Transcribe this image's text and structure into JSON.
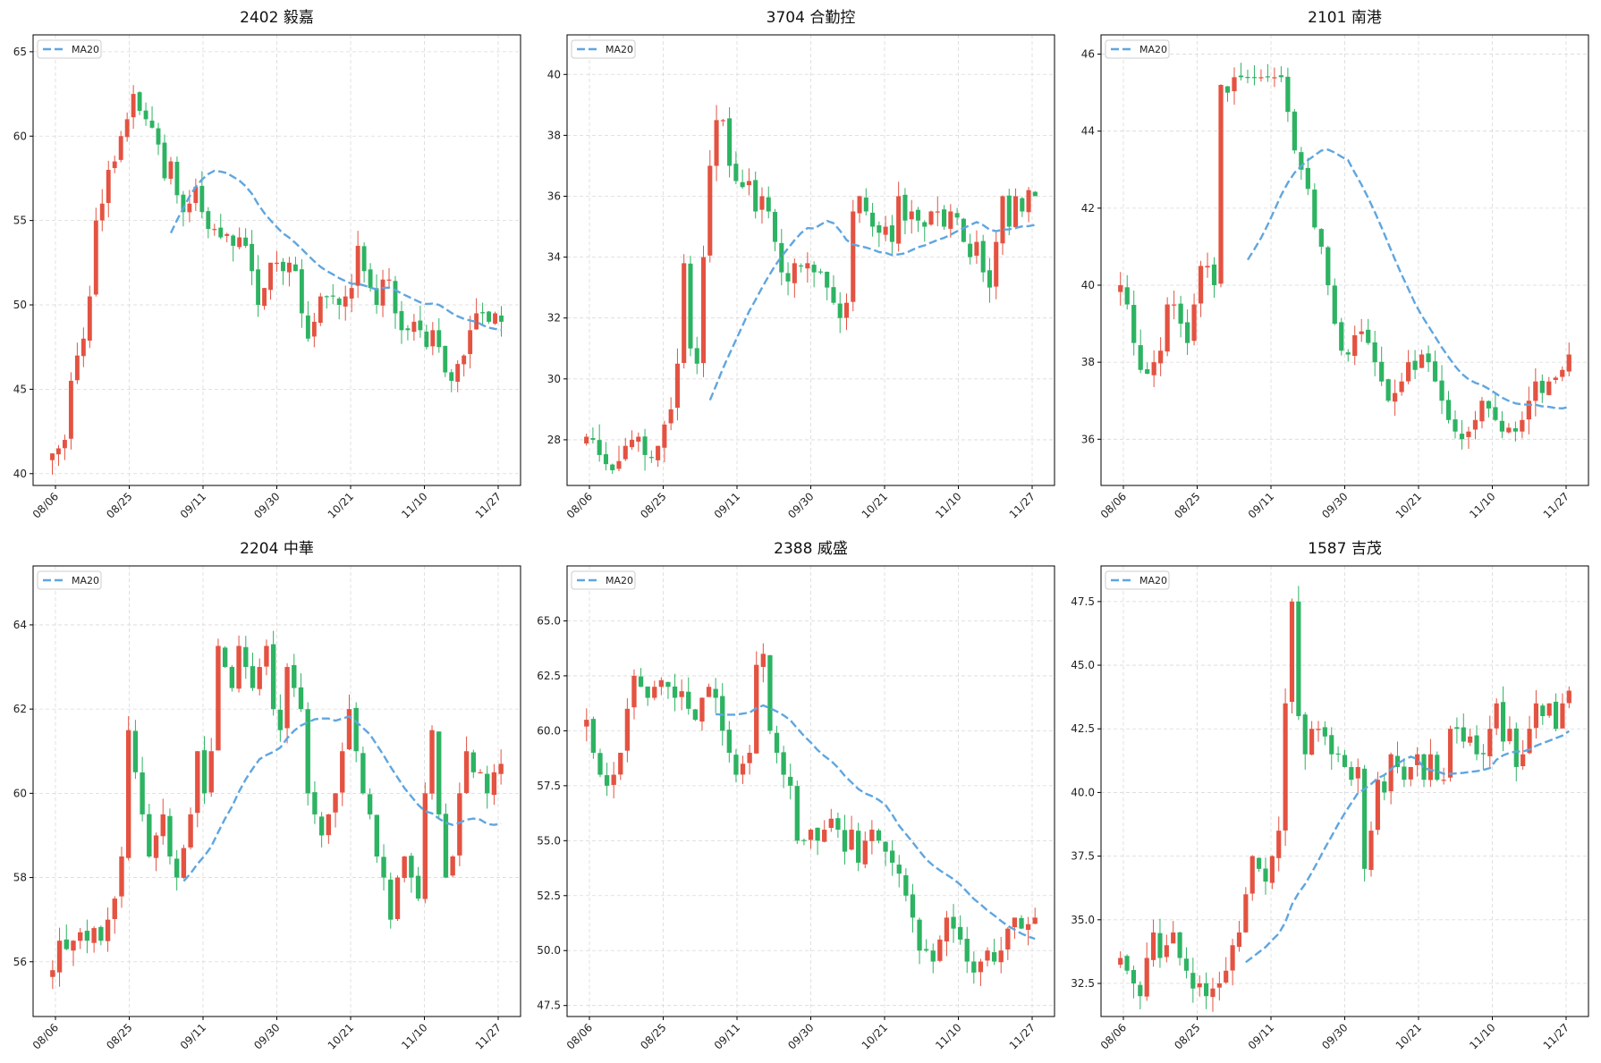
{
  "colors": {
    "up": "#e45241",
    "down": "#2db362",
    "ma": "#5fa6e0",
    "grid": "#d9d9d9",
    "axis": "#000000"
  },
  "chart_data": [
    {
      "type": "candlestick",
      "title": "2402 毅嘉",
      "legend": "MA20",
      "legend_position": "top-left",
      "grid": true,
      "ylim": [
        39.3,
        66
      ],
      "yticks": [
        "40",
        "45",
        "50",
        "55",
        "60",
        "65"
      ],
      "ytick_values": [
        40,
        45,
        50,
        55,
        60,
        65
      ],
      "xticks": [
        "08/06",
        "08/25",
        "09/11",
        "09/30",
        "10/21",
        "11/10",
        "11/27"
      ],
      "price_path": [
        41.2,
        41.5,
        42,
        45.5,
        47,
        48,
        50.5,
        55,
        56,
        58,
        58.5,
        60,
        61,
        62.5,
        61.5,
        61,
        60.5,
        59.5,
        57.5,
        58.5,
        56.5,
        55.5,
        56,
        57,
        55.5,
        54.5,
        54.5,
        54,
        54.2,
        53.5,
        54,
        53.5,
        52,
        50,
        51,
        52.5,
        52.5,
        52,
        52.5,
        52,
        49.5,
        48,
        49,
        50.5,
        50.5,
        50.5,
        50,
        50.5,
        51,
        53.5,
        52,
        51,
        50,
        51.5,
        51.5,
        49.5,
        48.5,
        48.5,
        49,
        48.5,
        47.5,
        48.5,
        47.5,
        46,
        45.5,
        46.5,
        47,
        48.5,
        49.5,
        49.5,
        49,
        49.5,
        49
      ]
    },
    {
      "type": "candlestick",
      "title": "3704 合勤控",
      "legend": "MA20",
      "legend_position": "top-left",
      "grid": true,
      "ylim": [
        26.5,
        41.3
      ],
      "yticks": [
        "28",
        "30",
        "32",
        "34",
        "36",
        "38",
        "40"
      ],
      "ytick_values": [
        28,
        30,
        32,
        34,
        36,
        38,
        40
      ],
      "xticks": [
        "08/06",
        "08/25",
        "09/11",
        "09/30",
        "10/21",
        "11/10",
        "11/27"
      ],
      "price_path": [
        28.1,
        28,
        27.5,
        27.2,
        27,
        27.3,
        27.8,
        28,
        28.1,
        27.5,
        27.4,
        27.8,
        28.5,
        29,
        30.5,
        33.8,
        31,
        30.5,
        34,
        37,
        38.5,
        38.5,
        37,
        36.5,
        36.3,
        36.5,
        35.5,
        36,
        35.5,
        34.5,
        33.5,
        33.2,
        33.8,
        33.7,
        33.8,
        33.5,
        33.5,
        33,
        32.5,
        32,
        32.5,
        35.5,
        36,
        35.5,
        35,
        34.8,
        35,
        34.5,
        36,
        35.2,
        35.5,
        35.2,
        35,
        35.5,
        35.5,
        35,
        35.5,
        35.3,
        34.5,
        34,
        34.5,
        33.5,
        33,
        34.5,
        36,
        35,
        36,
        35.5,
        36.2,
        36
      ]
    },
    {
      "type": "candlestick",
      "title": "2101 南港",
      "legend": "MA20",
      "legend_position": "top-left",
      "grid": true,
      "ylim": [
        34.8,
        46.5
      ],
      "yticks": [
        "36",
        "38",
        "40",
        "42",
        "44",
        "46"
      ],
      "ytick_values": [
        36,
        38,
        40,
        42,
        44,
        46
      ],
      "xticks": [
        "08/06",
        "08/25",
        "09/11",
        "09/30",
        "10/21",
        "11/10",
        "11/27"
      ],
      "price_path": [
        40,
        39.5,
        38.5,
        37.8,
        37.7,
        38,
        38.3,
        39.5,
        39.5,
        39,
        38.5,
        39.5,
        40.5,
        40.5,
        40,
        45.2,
        45,
        45.4,
        45.4,
        45.4,
        45.4,
        45.4,
        45.4,
        45.4,
        45.4,
        44.5,
        43.5,
        43,
        42.5,
        41.5,
        41,
        40,
        39,
        38.3,
        38.2,
        38.7,
        38.8,
        38.5,
        38,
        37.5,
        37,
        37.2,
        37.5,
        38,
        37.8,
        38.2,
        38,
        37.5,
        37,
        36.5,
        36.2,
        36,
        36.2,
        36.5,
        37,
        36.8,
        36.5,
        36.2,
        36.3,
        36.2,
        36.5,
        37,
        37.5,
        37.2,
        37.5,
        37.6,
        37.8,
        38.2
      ]
    },
    {
      "type": "candlestick",
      "title": "2204 中華",
      "legend": "MA20",
      "legend_position": "top-left",
      "grid": true,
      "ylim": [
        54.7,
        65.4
      ],
      "yticks": [
        "56",
        "58",
        "60",
        "62",
        "64"
      ],
      "ytick_values": [
        56,
        58,
        60,
        62,
        64
      ],
      "xticks": [
        "08/06",
        "08/25",
        "09/11",
        "09/30",
        "10/21",
        "11/10",
        "11/27"
      ],
      "price_path": [
        55.8,
        56.5,
        56.3,
        56.5,
        56.7,
        56.5,
        56.8,
        56.5,
        57,
        57.5,
        58.5,
        61.5,
        60.5,
        59.5,
        58.5,
        59,
        59.5,
        58.5,
        58,
        58.7,
        59.5,
        61,
        60,
        61,
        63.5,
        63,
        62.5,
        63.5,
        63,
        62.5,
        63,
        63.5,
        62,
        61.5,
        63,
        62.5,
        62,
        60,
        59.5,
        59,
        59.5,
        60,
        61,
        62,
        61,
        60,
        59.5,
        58.5,
        58,
        57,
        58,
        58.5,
        58,
        57.5,
        60,
        61.5,
        59.5,
        58,
        58.5,
        60,
        61,
        60.5,
        60.5,
        60,
        60.5,
        60.7
      ]
    },
    {
      "type": "candlestick",
      "title": "2388 威盛",
      "legend": "MA20",
      "legend_position": "top-left",
      "grid": true,
      "ylim": [
        47,
        67.5
      ],
      "yticks": [
        "47.5",
        "50.0",
        "52.5",
        "55.0",
        "57.5",
        "60.0",
        "62.5",
        "65.0"
      ],
      "ytick_values": [
        47.5,
        50,
        52.5,
        55,
        57.5,
        60,
        62.5,
        65
      ],
      "xticks": [
        "08/06",
        "08/25",
        "09/11",
        "09/30",
        "10/21",
        "11/10",
        "11/27"
      ],
      "price_path": [
        60.5,
        59,
        58,
        57.5,
        58,
        59,
        61,
        62.5,
        62,
        61.5,
        62,
        62.3,
        62,
        61.5,
        61.8,
        61,
        60.5,
        61.5,
        62,
        61.5,
        60,
        59,
        58,
        58.5,
        59,
        63,
        63.5,
        60,
        59,
        58,
        57.5,
        55,
        55,
        55.5,
        55,
        55.5,
        56,
        55.5,
        54.5,
        55.5,
        54,
        55,
        55.5,
        55,
        54.5,
        54,
        53.5,
        52.5,
        51.5,
        50,
        50,
        49.5,
        50.5,
        51.5,
        51,
        50.5,
        49.5,
        49,
        49.5,
        50,
        49.5,
        50,
        51,
        51.5,
        51,
        51.2,
        51.5
      ]
    },
    {
      "type": "candlestick",
      "title": "1587 吉茂",
      "legend": "MA20",
      "legend_position": "top-left",
      "grid": true,
      "ylim": [
        31.2,
        48.9
      ],
      "yticks": [
        "32.5",
        "35.0",
        "37.5",
        "40.0",
        "42.5",
        "45.0",
        "47.5"
      ],
      "ytick_values": [
        32.5,
        35,
        37.5,
        40,
        42.5,
        45,
        47.5
      ],
      "xticks": [
        "08/06",
        "08/25",
        "09/11",
        "09/30",
        "10/21",
        "11/10",
        "11/27"
      ],
      "price_path": [
        33.5,
        33,
        32.5,
        32,
        33.5,
        34.5,
        33.5,
        34,
        34.5,
        33.5,
        33,
        32.3,
        32.5,
        32,
        32.3,
        32.5,
        33,
        34,
        34.5,
        36,
        37.5,
        37,
        36.5,
        37.5,
        38.5,
        43.5,
        47.5,
        43,
        41.5,
        42.5,
        42.5,
        42.2,
        41.5,
        41.5,
        41,
        40.5,
        41,
        37,
        38.5,
        40.5,
        40,
        41.5,
        41,
        40.5,
        41,
        41.5,
        40.5,
        41.5,
        40.5,
        40.5,
        42.5,
        42.5,
        42,
        42.2,
        41.5,
        41.5,
        42.5,
        43.5,
        42,
        42.5,
        41,
        41.5,
        42.5,
        43.5,
        43,
        43.5,
        42.5,
        43.5,
        44
      ]
    }
  ]
}
